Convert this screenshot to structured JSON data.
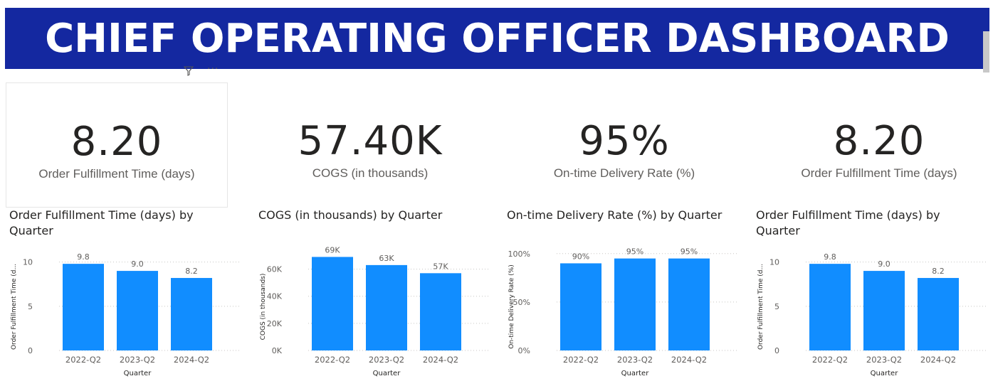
{
  "banner": {
    "title": "CHIEF OPERATING OFFICER DASHBOARD"
  },
  "visual_header": {
    "icons": [
      "filter-icon",
      "more-options-icon"
    ],
    "more_text": "···"
  },
  "colors": {
    "banner": "#1428A0",
    "bar": "#118DFF",
    "text": "#252423",
    "label": "#605E5C"
  },
  "cards": [
    {
      "value": "8.20",
      "label": "Order Fulfillment Time (days)"
    },
    {
      "value": "57.40K",
      "label": "COGS (in thousands)"
    },
    {
      "value": "95%",
      "label": "On-time Delivery Rate (%)"
    },
    {
      "value": "8.20",
      "label": "Order Fulfillment Time (days)"
    }
  ],
  "chart_data": [
    {
      "type": "bar",
      "title": "Order Fulfillment Time (days) by Quarter",
      "categories": [
        "2022-Q2",
        "2023-Q2",
        "2024-Q2"
      ],
      "values": [
        9.8,
        9.0,
        8.2
      ],
      "data_labels": [
        "9.8",
        "9.0",
        "8.2"
      ],
      "xlabel": "Quarter",
      "ylabel": "Order Fulfillment Time (d...",
      "ylim": [
        0,
        11.5
      ],
      "yticks": [
        0,
        5,
        10
      ],
      "ytick_labels": [
        "0",
        "5",
        "10"
      ],
      "grid": true
    },
    {
      "type": "bar",
      "title": "COGS (in thousands) by Quarter",
      "categories": [
        "2022-Q2",
        "2023-Q2",
        "2024-Q2"
      ],
      "values": [
        69,
        63,
        57
      ],
      "data_labels": [
        "69K",
        "63K",
        "57K"
      ],
      "xlabel": "Quarter",
      "ylabel": "COGS (in thousands)",
      "ylim": [
        0,
        75
      ],
      "yticks": [
        0,
        20,
        40,
        60
      ],
      "ytick_labels": [
        "0K",
        "20K",
        "40K",
        "60K"
      ],
      "grid": true
    },
    {
      "type": "bar",
      "title": "On-time Delivery Rate (%) by Quarter",
      "categories": [
        "2022-Q2",
        "2023-Q2",
        "2024-Q2"
      ],
      "values": [
        90,
        95,
        95
      ],
      "data_labels": [
        "90%",
        "95%",
        "95%"
      ],
      "xlabel": "Quarter",
      "ylabel": "On-time Delivery Rate (%)",
      "ylim": [
        0,
        105
      ],
      "yticks": [
        0,
        50,
        100
      ],
      "ytick_labels": [
        "0%",
        "50%",
        "100%"
      ],
      "grid": true
    },
    {
      "type": "bar",
      "title": "Order Fulfillment Time (days) by Quarter",
      "categories": [
        "2022-Q2",
        "2023-Q2",
        "2024-Q2"
      ],
      "values": [
        9.8,
        9.0,
        8.2
      ],
      "data_labels": [
        "9.8",
        "9.0",
        "8.2"
      ],
      "xlabel": "Quarter",
      "ylabel": "Order Fulfillment Time (d...",
      "ylim": [
        0,
        11.5
      ],
      "yticks": [
        0,
        5,
        10
      ],
      "ytick_labels": [
        "0",
        "5",
        "10"
      ],
      "grid": true
    }
  ]
}
